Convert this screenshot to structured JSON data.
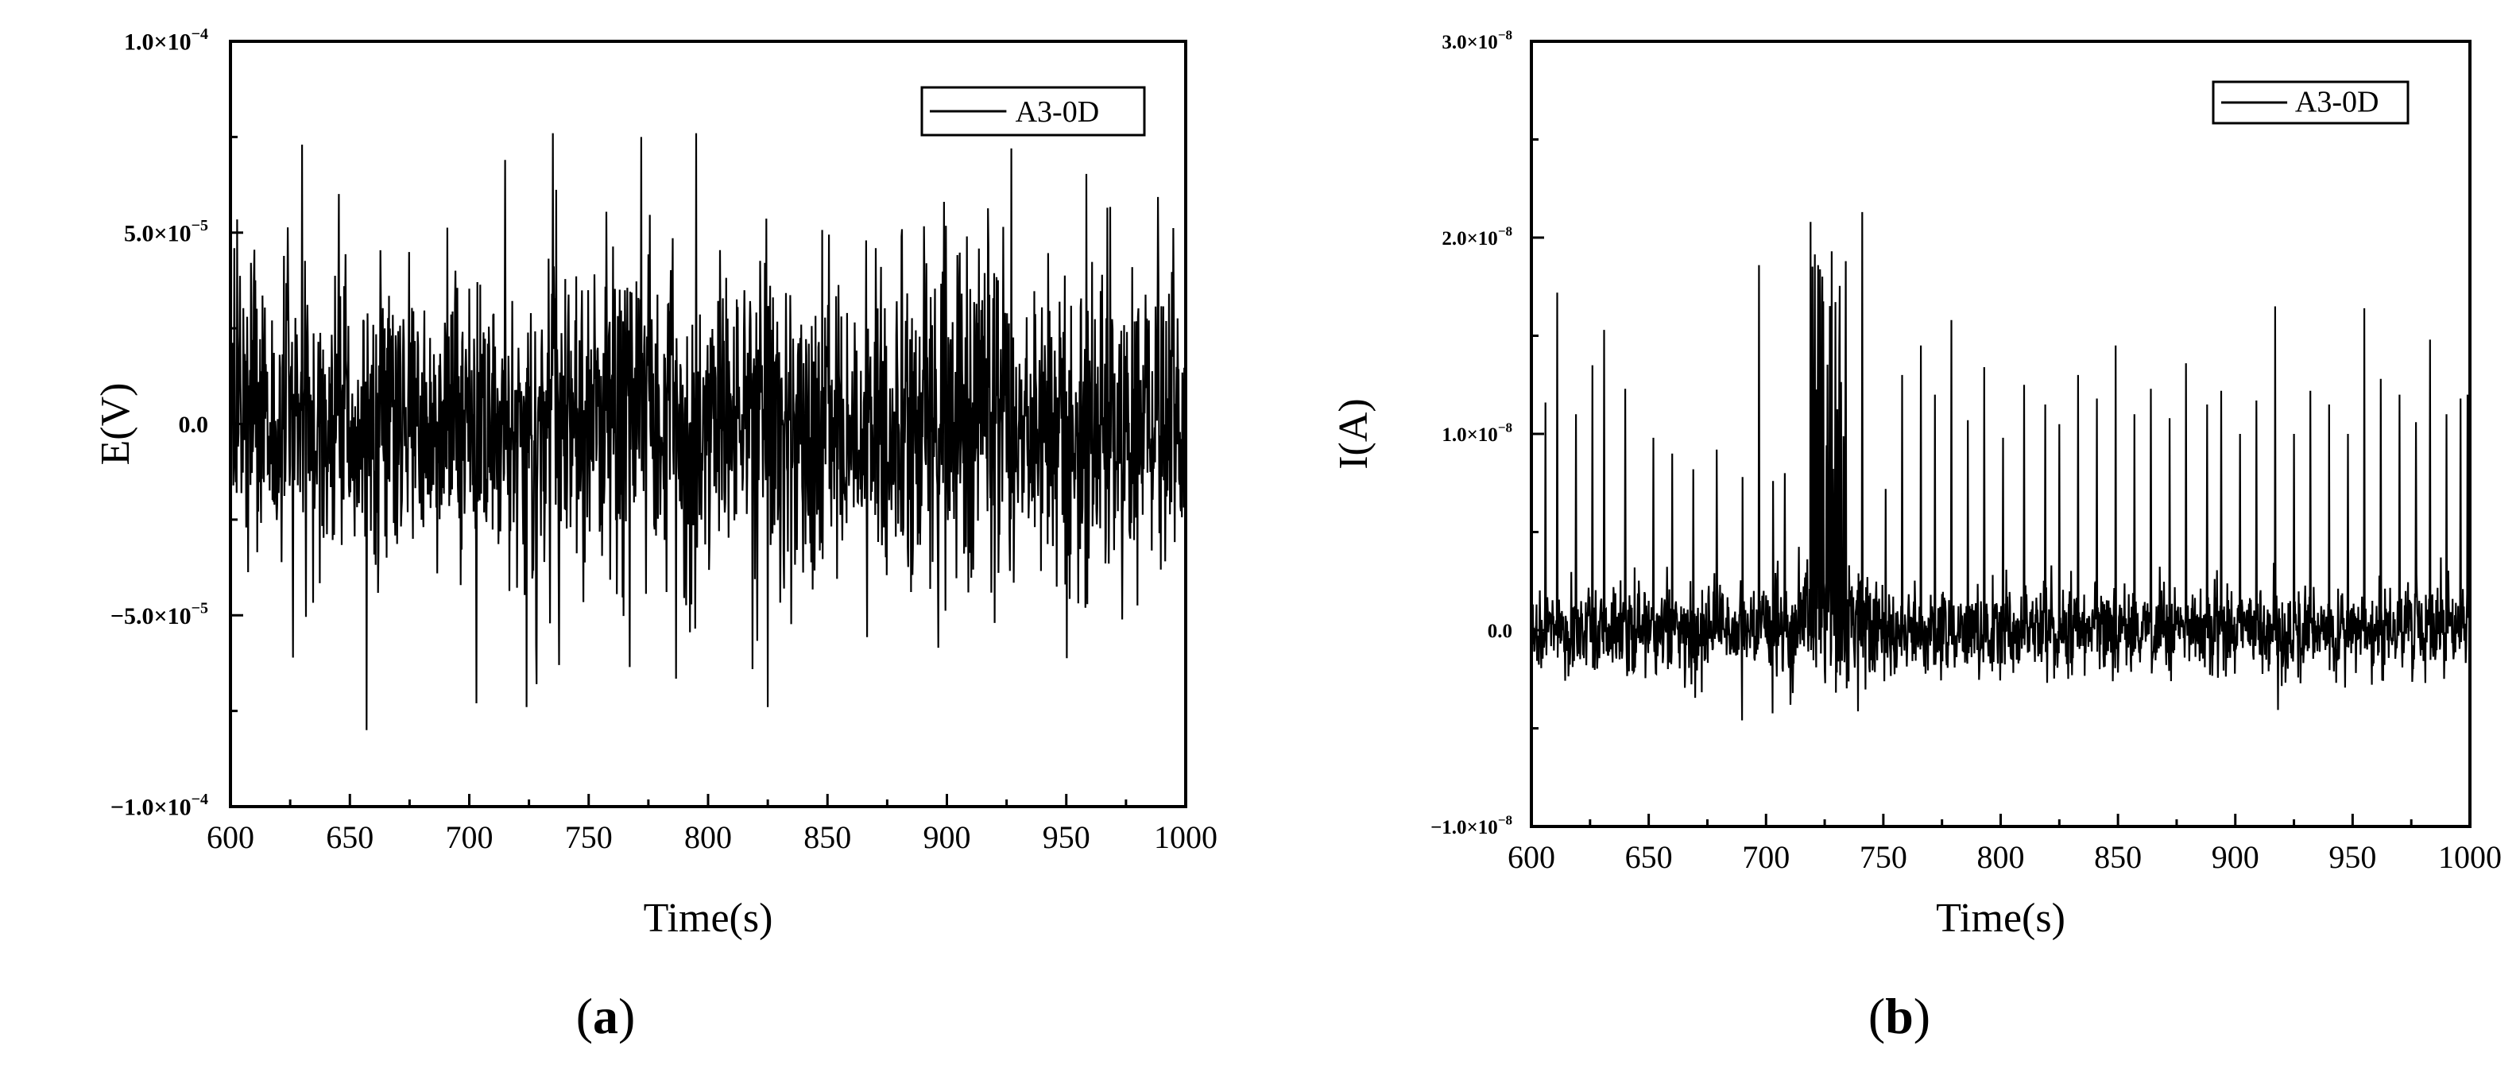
{
  "chart_data": [
    {
      "type": "line",
      "panel_label": "(a)",
      "xlabel": "Time(s)",
      "ylabel": "E(V)",
      "xlim": [
        600,
        1000
      ],
      "ylim": [
        -0.0001,
        0.0001
      ],
      "xticks": [
        "600",
        "650",
        "700",
        "750",
        "800",
        "850",
        "900",
        "950",
        "1000"
      ],
      "yticks": [
        {
          "base": "−1.0×10",
          "exp": "−4"
        },
        {
          "base": "−5.0×10",
          "exp": "−5"
        },
        {
          "base": "0.0",
          "exp": ""
        },
        {
          "base": "5.0×10",
          "exp": "−5"
        },
        {
          "base": "1.0×10",
          "exp": "−4"
        }
      ],
      "legend": {
        "position": "top-right"
      },
      "series": [
        {
          "name": "A3-0D",
          "color": "#000000"
        }
      ],
      "noise": {
        "std": 2.1e-05,
        "max_abs": 8e-05
      },
      "peaks": [
        {
          "x": 630,
          "y": 7.3e-05
        },
        {
          "x": 657,
          "y": -8e-05
        },
        {
          "x": 703,
          "y": -7.3e-05
        },
        {
          "x": 715,
          "y": 6.9e-05
        },
        {
          "x": 724,
          "y": -7.4e-05
        },
        {
          "x": 735,
          "y": 7.6e-05
        },
        {
          "x": 772,
          "y": 7.5e-05
        },
        {
          "x": 795,
          "y": 7.6e-05
        },
        {
          "x": 825,
          "y": -7.4e-05
        },
        {
          "x": 927,
          "y": 7.2e-05
        }
      ]
    },
    {
      "type": "line",
      "panel_label": "(b)",
      "xlabel": "Time(s)",
      "ylabel": "I(A)",
      "xlim": [
        600,
        1000
      ],
      "ylim": [
        -1e-08,
        3e-08
      ],
      "xticks": [
        "600",
        "650",
        "700",
        "750",
        "800",
        "850",
        "900",
        "950",
        "1000"
      ],
      "yticks": [
        {
          "base": "−1.0×10",
          "exp": "−8"
        },
        {
          "base": "0.0",
          "exp": ""
        },
        {
          "base": "1.0×10",
          "exp": "−8"
        },
        {
          "base": "2.0×10",
          "exp": "−8"
        },
        {
          "base": "3.0×10",
          "exp": "−8"
        }
      ],
      "legend": {
        "position": "top-right"
      },
      "series": [
        {
          "name": "A3-0D",
          "color": "#000000"
        }
      ],
      "noise": {
        "std": 1.1e-09
      },
      "spikes": [
        {
          "x": 606,
          "y": 1.16e-08
        },
        {
          "x": 611,
          "y": 1.72e-08
        },
        {
          "x": 619,
          "y": 1.1e-08
        },
        {
          "x": 626,
          "y": 1.35e-08
        },
        {
          "x": 631,
          "y": 1.53e-08
        },
        {
          "x": 640,
          "y": 1.23e-08
        },
        {
          "x": 652,
          "y": 9.8e-09
        },
        {
          "x": 660,
          "y": 9e-09
        },
        {
          "x": 669,
          "y": 8.2e-09
        },
        {
          "x": 679,
          "y": 9.2e-09
        },
        {
          "x": 690,
          "y": 7.8e-09
        },
        {
          "x": 697,
          "y": 1.86e-08
        },
        {
          "x": 703,
          "y": 7.6e-09
        },
        {
          "x": 708,
          "y": 8e-09
        },
        {
          "x": 719,
          "y": 2.08e-08
        },
        {
          "x": 723,
          "y": 1.65e-08
        },
        {
          "x": 728,
          "y": 1.93e-08
        },
        {
          "x": 734,
          "y": 1.88e-08
        },
        {
          "x": 741,
          "y": 2.13e-08
        },
        {
          "x": 751,
          "y": 7.2e-09
        },
        {
          "x": 758,
          "y": 1.3e-08
        },
        {
          "x": 766,
          "y": 1.45e-08
        },
        {
          "x": 772,
          "y": 1.2e-08
        },
        {
          "x": 779,
          "y": 1.58e-08
        },
        {
          "x": 786,
          "y": 1.07e-08
        },
        {
          "x": 793,
          "y": 1.34e-08
        },
        {
          "x": 801,
          "y": 9.8e-09
        },
        {
          "x": 810,
          "y": 1.25e-08
        },
        {
          "x": 819,
          "y": 1.15e-08
        },
        {
          "x": 825,
          "y": 1.05e-08
        },
        {
          "x": 833,
          "y": 1.3e-08
        },
        {
          "x": 841,
          "y": 1.18e-08
        },
        {
          "x": 849,
          "y": 1.45e-08
        },
        {
          "x": 857,
          "y": 1.1e-08
        },
        {
          "x": 864,
          "y": 1.23e-08
        },
        {
          "x": 872,
          "y": 1.08e-08
        },
        {
          "x": 879,
          "y": 1.36e-08
        },
        {
          "x": 888,
          "y": 1.15e-08
        },
        {
          "x": 894,
          "y": 1.22e-08
        },
        {
          "x": 902,
          "y": 1e-08
        },
        {
          "x": 909,
          "y": 1.17e-08
        },
        {
          "x": 917,
          "y": 1.65e-08
        },
        {
          "x": 925,
          "y": 1e-08
        },
        {
          "x": 932,
          "y": 1.22e-08
        },
        {
          "x": 940,
          "y": 1.15e-08
        },
        {
          "x": 948,
          "y": 1e-08
        },
        {
          "x": 955,
          "y": 1.64e-08
        },
        {
          "x": 962,
          "y": 1.28e-08
        },
        {
          "x": 970,
          "y": 1.2e-08
        },
        {
          "x": 977,
          "y": 1.06e-08
        },
        {
          "x": 983,
          "y": 1.48e-08
        },
        {
          "x": 990,
          "y": 1.1e-08
        },
        {
          "x": 996,
          "y": 1.18e-08
        },
        {
          "x": 999,
          "y": 1.2e-08
        }
      ]
    }
  ]
}
